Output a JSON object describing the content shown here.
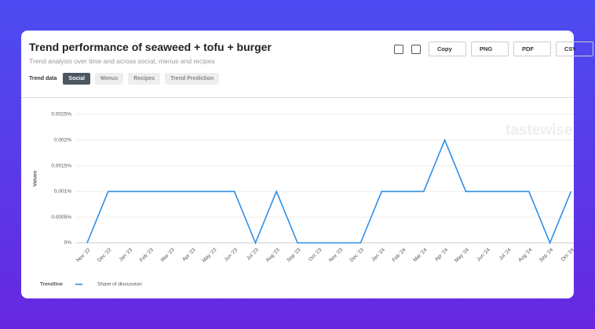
{
  "header": {
    "title": "Trend performance of seaweed + tofu + burger",
    "subtitle": "Trend analysis over time and across social, menus and recipes",
    "buttons": [
      "Copy",
      "PNG",
      "PDF",
      "CSV"
    ],
    "tabs_label": "Trend data",
    "tabs": [
      "Social",
      "Menus",
      "Recipes",
      "Trend Prediction"
    ],
    "watermark": "tastewise"
  },
  "chart_data": {
    "type": "line",
    "y_label": "Values",
    "legend_title": "Trendline",
    "categories": [
      "Nov '22",
      "Dec '22",
      "Jan '23",
      "Feb '23",
      "Mar '23",
      "Apr '23",
      "May '23",
      "Jun '23",
      "Jul '23",
      "Aug '23",
      "Sep '23",
      "Oct '23",
      "Nov '23",
      "Dec '23",
      "Jan '24",
      "Feb '24",
      "Mar '24",
      "Apr '24",
      "May '24",
      "Jun '24",
      "Jul '24",
      "Aug '24",
      "Sep '24",
      "Oct '24"
    ],
    "series": [
      {
        "name": "Share of discussion",
        "color": "#2f8fe6",
        "values": [
          0,
          0.001,
          0.001,
          0.001,
          0.001,
          0.001,
          0.001,
          0.001,
          0,
          0.001,
          0,
          0,
          0,
          0,
          0.001,
          0.001,
          0.001,
          0.002,
          0.001,
          0.001,
          0.001,
          0.001,
          0,
          0.001
        ]
      }
    ],
    "ylim": [
      0,
      0.0025
    ],
    "yticks": [
      {
        "value": 0,
        "label": "0%"
      },
      {
        "value": 0.0005,
        "label": "0.0005%"
      },
      {
        "value": 0.001,
        "label": "0.001%"
      },
      {
        "value": 0.0015,
        "label": "0.0015%"
      },
      {
        "value": 0.002,
        "label": "0.002%"
      },
      {
        "value": 0.0025,
        "label": "0.0025%"
      }
    ],
    "grid": true
  }
}
